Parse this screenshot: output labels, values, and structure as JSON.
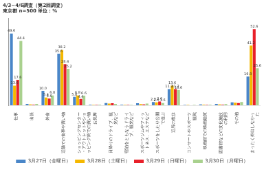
{
  "chart_data": {
    "type": "bar",
    "title": "4/3~4/6調査（第2回調査）",
    "subtitle": "東京都 n=500 単位：%",
    "categories": [
      "仕事",
      "出張",
      "外食",
      "近隣での食事や買い物",
      "ショッピングセンター・アウトレットやショッピング街での買い物",
      "お見舞",
      "日帰りのドライブ、観光など",
      "宿泊をともなうドライブ、観光など",
      "スポーツジムやフィットネス、エステなど",
      "スポーツをしたり公園で遊ぶ",
      "近所の散歩",
      "コンサートやスポーツ観戦",
      "映画館での映画鑑賞",
      "図書館などの文化施設の利用",
      "その他",
      "まったく外出しなかった"
    ],
    "series": [
      {
        "name": "3月27日（金曜日）",
        "color": "#4a86c8",
        "values": [
          49.6,
          1.0,
          10.0,
          35.6,
          5.8,
          0.4,
          1.6,
          0.4,
          1.4,
          2.2,
          11.2,
          0.2,
          0.6,
          1.0,
          2.0,
          19.8
        ],
        "value_labels": [
          "49.6",
          null,
          "10.0",
          "35.6",
          "5.8",
          null,
          null,
          null,
          null,
          "2.2",
          "11.2",
          null,
          null,
          null,
          null,
          "19.8"
        ]
      },
      {
        "name": "3月28日（土曜日）",
        "color": "#f5b800",
        "values": [
          13.6,
          0.6,
          5.4,
          38.2,
          6.8,
          0.2,
          1.2,
          0.2,
          0.8,
          2.0,
          13.6,
          0.2,
          0.4,
          0.6,
          1.8,
          41.2
        ],
        "value_labels": [
          "13.6",
          null,
          "5.4",
          "38.2",
          "6.8",
          null,
          null,
          null,
          null,
          "2.0",
          "13.6",
          null,
          null,
          null,
          null,
          "41.2"
        ]
      },
      {
        "name": "3月29日（日曜日）",
        "color": "#e8202a",
        "values": [
          17.6,
          0.4,
          4.6,
          28.4,
          4.4,
          0.2,
          1.4,
          0.2,
          0.6,
          2.6,
          11.2,
          0.0,
          0.2,
          0.4,
          1.6,
          52.6
        ],
        "value_labels": [
          "17.6",
          null,
          "4.6",
          "28.4",
          "4.4",
          null,
          null,
          null,
          null,
          "2.6",
          "11.2",
          null,
          null,
          null,
          null,
          "52.6"
        ]
      },
      {
        "name": "3月30日（月曜日）",
        "color": "#a9d18e",
        "values": [
          44.4,
          1.0,
          6.8,
          25.2,
          6.6,
          0.4,
          1.0,
          0.2,
          1.2,
          1.6,
          10.6,
          0.2,
          0.4,
          0.8,
          2.2,
          25.6
        ],
        "value_labels": [
          "44.4",
          null,
          "6.8",
          "25.2",
          "6.6",
          null,
          null,
          null,
          null,
          "1.6",
          "10.6",
          null,
          null,
          null,
          null,
          "25.6"
        ]
      }
    ],
    "ylim": [
      0,
      60
    ],
    "tick_labels": "x",
    "grid": false,
    "legend": "bottom",
    "data_labels": true
  }
}
